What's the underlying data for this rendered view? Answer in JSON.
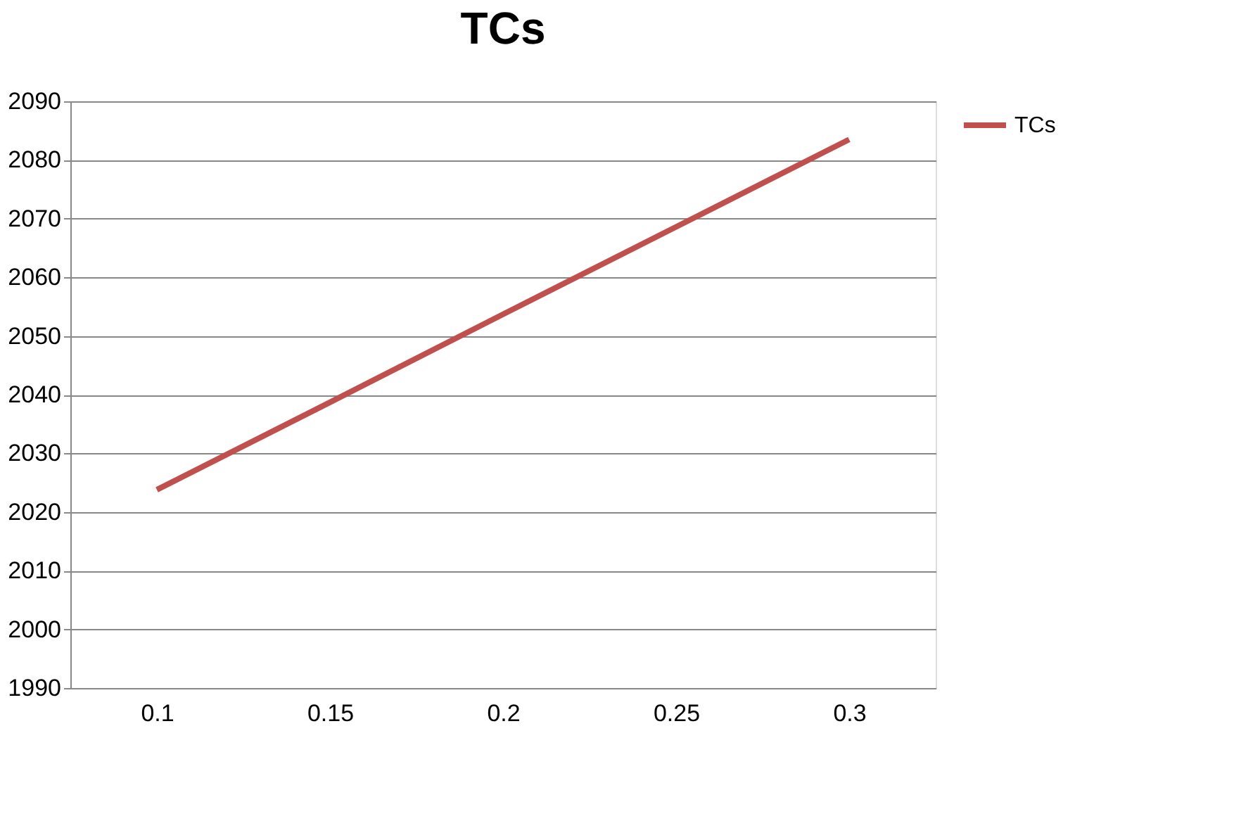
{
  "chart_data": {
    "type": "line",
    "title": "TCs",
    "categories": [
      "0.1",
      "0.15",
      "0.2",
      "0.25",
      "0.3"
    ],
    "series": [
      {
        "name": "TCs",
        "color": "#c0504d",
        "values": [
          2023.8,
          2038.7,
          2053.7,
          2068.6,
          2083.5
        ]
      }
    ],
    "ylim": [
      1990,
      2090
    ],
    "yticks": [
      1990,
      2000,
      2010,
      2020,
      2030,
      2040,
      2050,
      2060,
      2070,
      2080,
      2090
    ],
    "grid": "y",
    "legend": "right",
    "marker": "none",
    "line_style": "solid"
  }
}
